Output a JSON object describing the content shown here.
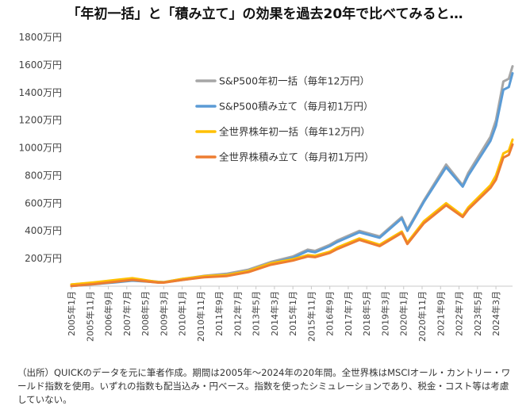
{
  "chart_data": {
    "type": "line",
    "title": "「年初一括」と「積み立て」の効果を過去20年で比べてみると…",
    "y_unit": "万円",
    "ylim": [
      0,
      1800
    ],
    "yticks": [
      200,
      400,
      600,
      800,
      1000,
      1200,
      1400,
      1600,
      1800
    ],
    "ytick_labels": [
      "200万円",
      "400万円",
      "600万円",
      "800万円",
      "1000万円",
      "1200万円",
      "1400万円",
      "1600万円",
      "1800万円"
    ],
    "xlim": [
      "2005-01",
      "2024-12"
    ],
    "xtick_labels": [
      "2005年1月",
      "2005年11月",
      "2006年9月",
      "2007年7月",
      "2008年5月",
      "2009年3月",
      "2010年1月",
      "2010年11月",
      "2011年9月",
      "2012年7月",
      "2013年5月",
      "2014年3月",
      "2015年1月",
      "2015年11月",
      "2016年9月",
      "2017年7月",
      "2018年5月",
      "2019年3月",
      "2020年1月",
      "2020年11月",
      "2021年9月",
      "2022年7月",
      "2023年5月",
      "2024年3月"
    ],
    "legend_position": "upper-left inside",
    "grid": false,
    "series": [
      {
        "name": "S&P500年初一括（毎年12万円）",
        "color": "#a6a6a6",
        "points": [
          [
            "2005-01",
            12
          ],
          [
            "2006-01",
            25
          ],
          [
            "2007-01",
            40
          ],
          [
            "2007-10",
            50
          ],
          [
            "2008-12",
            32
          ],
          [
            "2009-03",
            30
          ],
          [
            "2010-01",
            52
          ],
          [
            "2011-01",
            75
          ],
          [
            "2012-01",
            90
          ],
          [
            "2013-01",
            120
          ],
          [
            "2014-01",
            175
          ],
          [
            "2015-01",
            215
          ],
          [
            "2015-09",
            265
          ],
          [
            "2016-01",
            255
          ],
          [
            "2016-09",
            300
          ],
          [
            "2017-01",
            330
          ],
          [
            "2018-01",
            400
          ],
          [
            "2018-12",
            360
          ],
          [
            "2019-12",
            500
          ],
          [
            "2020-03",
            410
          ],
          [
            "2020-12",
            620
          ],
          [
            "2021-12",
            880
          ],
          [
            "2022-09",
            730
          ],
          [
            "2022-12",
            820
          ],
          [
            "2023-12",
            1080
          ],
          [
            "2024-03",
            1200
          ],
          [
            "2024-07",
            1480
          ],
          [
            "2024-10",
            1500
          ],
          [
            "2024-12",
            1590
          ]
        ]
      },
      {
        "name": "S&P500積み立て（毎月初1万円）",
        "color": "#5b9bd5",
        "points": [
          [
            "2005-01",
            1
          ],
          [
            "2006-01",
            14
          ],
          [
            "2007-01",
            28
          ],
          [
            "2007-10",
            40
          ],
          [
            "2008-12",
            28
          ],
          [
            "2009-03",
            28
          ],
          [
            "2010-01",
            45
          ],
          [
            "2011-01",
            68
          ],
          [
            "2012-01",
            82
          ],
          [
            "2013-01",
            110
          ],
          [
            "2014-01",
            165
          ],
          [
            "2015-01",
            205
          ],
          [
            "2015-09",
            255
          ],
          [
            "2016-01",
            245
          ],
          [
            "2016-09",
            290
          ],
          [
            "2017-01",
            320
          ],
          [
            "2018-01",
            390
          ],
          [
            "2018-12",
            350
          ],
          [
            "2019-12",
            490
          ],
          [
            "2020-03",
            400
          ],
          [
            "2020-12",
            610
          ],
          [
            "2021-12",
            860
          ],
          [
            "2022-09",
            720
          ],
          [
            "2022-12",
            800
          ],
          [
            "2023-12",
            1050
          ],
          [
            "2024-03",
            1160
          ],
          [
            "2024-07",
            1420
          ],
          [
            "2024-10",
            1440
          ],
          [
            "2024-12",
            1540
          ]
        ]
      },
      {
        "name": "全世界株年初一括（毎年12万円）",
        "color": "#ffc000",
        "points": [
          [
            "2005-01",
            12
          ],
          [
            "2006-01",
            27
          ],
          [
            "2007-01",
            45
          ],
          [
            "2007-10",
            58
          ],
          [
            "2008-12",
            30
          ],
          [
            "2009-03",
            28
          ],
          [
            "2010-01",
            52
          ],
          [
            "2011-01",
            72
          ],
          [
            "2012-01",
            80
          ],
          [
            "2013-01",
            110
          ],
          [
            "2014-01",
            165
          ],
          [
            "2015-01",
            195
          ],
          [
            "2015-09",
            225
          ],
          [
            "2016-01",
            220
          ],
          [
            "2016-09",
            250
          ],
          [
            "2017-01",
            280
          ],
          [
            "2018-01",
            345
          ],
          [
            "2018-12",
            300
          ],
          [
            "2019-12",
            395
          ],
          [
            "2020-03",
            315
          ],
          [
            "2020-12",
            470
          ],
          [
            "2021-12",
            600
          ],
          [
            "2022-09",
            510
          ],
          [
            "2022-12",
            570
          ],
          [
            "2023-12",
            730
          ],
          [
            "2024-03",
            800
          ],
          [
            "2024-07",
            960
          ],
          [
            "2024-10",
            980
          ],
          [
            "2024-12",
            1060
          ]
        ]
      },
      {
        "name": "全世界株積み立て（毎月初1万円）",
        "color": "#ed7d31",
        "points": [
          [
            "2005-01",
            1
          ],
          [
            "2006-01",
            15
          ],
          [
            "2007-01",
            32
          ],
          [
            "2007-10",
            46
          ],
          [
            "2008-12",
            26
          ],
          [
            "2009-03",
            26
          ],
          [
            "2010-01",
            45
          ],
          [
            "2011-01",
            65
          ],
          [
            "2012-01",
            73
          ],
          [
            "2013-01",
            102
          ],
          [
            "2014-01",
            155
          ],
          [
            "2015-01",
            185
          ],
          [
            "2015-09",
            215
          ],
          [
            "2016-01",
            210
          ],
          [
            "2016-09",
            240
          ],
          [
            "2017-01",
            268
          ],
          [
            "2018-01",
            335
          ],
          [
            "2018-12",
            290
          ],
          [
            "2019-12",
            385
          ],
          [
            "2020-03",
            305
          ],
          [
            "2020-12",
            455
          ],
          [
            "2021-12",
            585
          ],
          [
            "2022-09",
            500
          ],
          [
            "2022-12",
            555
          ],
          [
            "2023-12",
            710
          ],
          [
            "2024-03",
            770
          ],
          [
            "2024-07",
            930
          ],
          [
            "2024-10",
            950
          ],
          [
            "2024-12",
            1025
          ]
        ]
      }
    ]
  },
  "note": "（出所）QUICKのデータを元に筆者作成。期間は2005年～2024年の20年間。全世界株はMSCIオール・カントリー・ワールド指数を使用。いずれの指数も配当込み・円ベース。指数を使ったシミュレーションであり、税金・コスト等は考慮していない。"
}
